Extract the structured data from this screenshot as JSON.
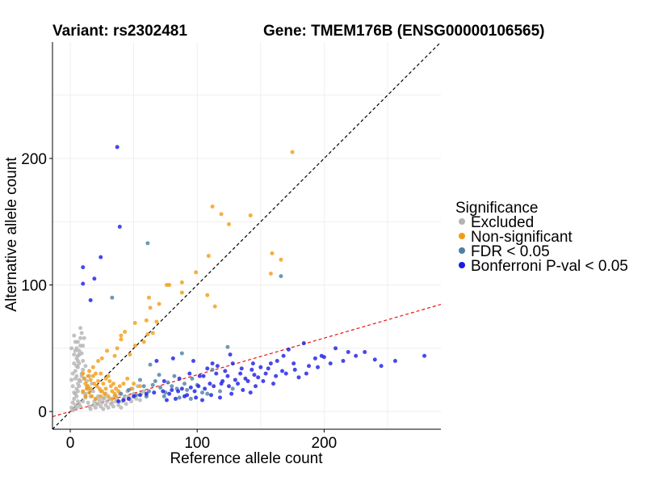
{
  "titles": {
    "variant": "Variant: rs2302481",
    "gene": "Gene: TMEM176B (ENSG00000106565)"
  },
  "chart_data": {
    "type": "scatter",
    "xlabel": "Reference allele count",
    "ylabel": "Alternative allele count",
    "xlim": [
      -14,
      292
    ],
    "ylim": [
      -14,
      292
    ],
    "x_ticks": [
      0,
      100,
      200
    ],
    "y_ticks": [
      0,
      100,
      200
    ],
    "minor_grid": [
      50,
      150,
      250
    ],
    "grid": true,
    "reference_lines": [
      {
        "name": "y = x",
        "slope": 1.0,
        "intercept": 0,
        "color": "#000000",
        "dash": true
      },
      {
        "name": "fitted",
        "slope": 0.29,
        "intercept": 0,
        "color": "#ee1111",
        "dash": true
      }
    ],
    "legend": {
      "title": "Significance",
      "position": "right",
      "entries": [
        {
          "label": "Excluded",
          "color": "#b3b3b3"
        },
        {
          "label": "Non-significant",
          "color": "#f39c12"
        },
        {
          "label": "FDR < 0.05",
          "color": "#4a7fa8"
        },
        {
          "label": "Bonferroni P-val < 0.05",
          "color": "#1a1ae6"
        }
      ]
    },
    "series": [
      {
        "name": "Excluded",
        "color": "#b3b3b3",
        "points": [
          [
            3,
            2
          ],
          [
            4,
            5
          ],
          [
            5,
            3
          ],
          [
            6,
            8
          ],
          [
            7,
            6
          ],
          [
            8,
            4
          ],
          [
            3,
            10
          ],
          [
            4,
            14
          ],
          [
            5,
            18
          ],
          [
            6,
            22
          ],
          [
            7,
            25
          ],
          [
            5,
            28
          ],
          [
            4,
            32
          ],
          [
            6,
            35
          ],
          [
            3,
            38
          ],
          [
            5,
            42
          ],
          [
            7,
            45
          ],
          [
            4,
            48
          ],
          [
            8,
            52
          ],
          [
            6,
            55
          ],
          [
            9,
            62
          ],
          [
            11,
            58
          ],
          [
            8,
            66
          ],
          [
            10,
            40
          ],
          [
            12,
            36
          ],
          [
            9,
            30
          ],
          [
            11,
            26
          ],
          [
            13,
            20
          ],
          [
            10,
            15
          ],
          [
            12,
            11
          ],
          [
            14,
            7
          ],
          [
            15,
            4
          ],
          [
            16,
            2
          ],
          [
            18,
            5
          ],
          [
            20,
            3
          ],
          [
            22,
            6
          ],
          [
            24,
            4
          ],
          [
            26,
            2
          ],
          [
            28,
            5
          ],
          [
            30,
            3
          ],
          [
            32,
            6
          ],
          [
            34,
            4
          ],
          [
            36,
            8
          ],
          [
            38,
            5
          ],
          [
            40,
            3
          ],
          [
            42,
            10
          ],
          [
            44,
            6
          ],
          [
            46,
            12
          ],
          [
            48,
            8
          ],
          [
            50,
            14
          ],
          [
            52,
            10
          ],
          [
            55,
            9
          ],
          [
            58,
            16
          ],
          [
            5,
            12
          ],
          [
            6,
            16
          ],
          [
            7,
            20
          ],
          [
            8,
            24
          ],
          [
            9,
            28
          ],
          [
            10,
            33
          ],
          [
            7,
            38
          ],
          [
            6,
            44
          ],
          [
            5,
            50
          ],
          [
            4,
            55
          ],
          [
            3,
            60
          ],
          [
            2,
            1
          ],
          [
            1,
            3
          ],
          [
            2,
            7
          ],
          [
            3,
            15
          ],
          [
            2,
            20
          ],
          [
            1,
            25
          ],
          [
            2,
            30
          ],
          [
            3,
            45
          ],
          [
            1,
            50
          ],
          [
            10,
            8
          ],
          [
            12,
            14
          ],
          [
            14,
            18
          ],
          [
            13,
            24
          ],
          [
            15,
            28
          ],
          [
            16,
            12
          ],
          [
            18,
            16
          ],
          [
            17,
            22
          ],
          [
            20,
            10
          ],
          [
            22,
            12
          ],
          [
            24,
            16
          ],
          [
            26,
            10
          ],
          [
            28,
            14
          ],
          [
            19,
            8
          ],
          [
            21,
            6
          ],
          [
            23,
            9
          ],
          [
            25,
            7
          ],
          [
            27,
            11
          ],
          [
            29,
            8
          ],
          [
            31,
            10
          ],
          [
            33,
            7
          ],
          [
            35,
            12
          ],
          [
            37,
            9
          ],
          [
            39,
            14
          ],
          [
            41,
            8
          ],
          [
            43,
            12
          ],
          [
            45,
            16
          ],
          [
            47,
            10
          ],
          [
            49,
            18
          ],
          [
            51,
            12
          ],
          [
            53,
            20
          ],
          [
            56,
            14
          ],
          [
            60,
            12
          ],
          [
            4,
            26
          ],
          [
            5,
            36
          ],
          [
            6,
            40
          ],
          [
            7,
            48
          ],
          [
            8,
            58
          ],
          [
            9,
            46
          ],
          [
            10,
            52
          ]
        ]
      },
      {
        "name": "Non-significant",
        "color": "#f39c12",
        "points": [
          [
            175,
            205
          ],
          [
            112,
            162
          ],
          [
            119,
            156
          ],
          [
            125,
            148
          ],
          [
            142,
            155
          ],
          [
            159,
            125
          ],
          [
            109,
            123
          ],
          [
            166,
            120
          ],
          [
            158,
            109
          ],
          [
            99,
            110
          ],
          [
            88,
            102
          ],
          [
            78,
            100
          ],
          [
            76,
            100
          ],
          [
            108,
            92
          ],
          [
            88,
            94
          ],
          [
            114,
            83
          ],
          [
            62,
            90
          ],
          [
            70,
            85
          ],
          [
            63,
            82
          ],
          [
            60,
            72
          ],
          [
            68,
            71
          ],
          [
            65,
            62
          ],
          [
            61,
            61
          ],
          [
            51,
            70
          ],
          [
            43,
            63
          ],
          [
            40,
            60
          ],
          [
            40,
            57
          ],
          [
            58,
            55
          ],
          [
            51,
            52
          ],
          [
            37,
            50
          ],
          [
            47,
            45
          ],
          [
            35,
            44
          ],
          [
            29,
            48
          ],
          [
            25,
            42
          ],
          [
            22,
            40
          ],
          [
            18,
            35
          ],
          [
            15,
            32
          ],
          [
            10,
            30
          ],
          [
            14,
            28
          ],
          [
            16,
            25
          ],
          [
            19,
            22
          ],
          [
            21,
            20
          ],
          [
            23,
            18
          ],
          [
            25,
            16
          ],
          [
            27,
            14
          ],
          [
            30,
            12
          ],
          [
            33,
            10
          ],
          [
            12,
            22
          ],
          [
            13,
            18
          ],
          [
            15,
            15
          ],
          [
            17,
            12
          ],
          [
            20,
            10
          ],
          [
            11,
            26
          ],
          [
            18,
            28
          ],
          [
            24,
            30
          ],
          [
            28,
            26
          ],
          [
            31,
            24
          ],
          [
            34,
            22
          ],
          [
            36,
            18
          ],
          [
            38,
            16
          ],
          [
            14,
            20
          ],
          [
            22,
            24
          ],
          [
            26,
            22
          ],
          [
            32,
            20
          ],
          [
            35,
            14
          ],
          [
            30,
            28
          ],
          [
            20,
            30
          ],
          [
            16,
            18
          ],
          [
            12,
            12
          ],
          [
            10,
            16
          ],
          [
            24,
            12
          ],
          [
            28,
            18
          ],
          [
            33,
            16
          ],
          [
            36,
            12
          ],
          [
            39,
            20
          ],
          [
            42,
            22
          ],
          [
            45,
            26
          ],
          [
            48,
            18
          ],
          [
            50,
            22
          ],
          [
            55,
            20
          ]
        ]
      },
      {
        "name": "FDR < 0.05",
        "color": "#4a7fa8",
        "points": [
          [
            61,
            133
          ],
          [
            166,
            107
          ],
          [
            33,
            90
          ],
          [
            124,
            51
          ],
          [
            88,
            46
          ],
          [
            63,
            37
          ],
          [
            112,
            33
          ],
          [
            70,
            29
          ],
          [
            82,
            28
          ],
          [
            96,
            26
          ],
          [
            55,
            25
          ],
          [
            67,
            24
          ],
          [
            77,
            23
          ],
          [
            90,
            22
          ],
          [
            100,
            21
          ],
          [
            58,
            20
          ],
          [
            71,
            19
          ],
          [
            84,
            18
          ],
          [
            46,
            17
          ],
          [
            62,
            16
          ],
          [
            75,
            15
          ],
          [
            40,
            14
          ],
          [
            52,
            13
          ],
          [
            60,
            12
          ],
          [
            74,
            12
          ],
          [
            86,
            11
          ],
          [
            95,
            10
          ],
          [
            108,
            14
          ],
          [
            118,
            16
          ],
          [
            128,
            18
          ],
          [
            65,
            21
          ],
          [
            80,
            20
          ],
          [
            92,
            17
          ],
          [
            104,
            15
          ]
        ]
      },
      {
        "name": "Bonferroni P-val < 0.05",
        "color": "#1a1ae6",
        "points": [
          [
            37,
            209
          ],
          [
            10,
            114
          ],
          [
            39,
            146
          ],
          [
            24,
            122
          ],
          [
            19,
            105
          ],
          [
            10,
            101
          ],
          [
            16,
            88
          ],
          [
            68,
            40
          ],
          [
            81,
            42
          ],
          [
            97,
            40
          ],
          [
            112,
            38
          ],
          [
            126,
            45
          ],
          [
            128,
            38
          ],
          [
            143,
            33
          ],
          [
            158,
            38
          ],
          [
            163,
            40
          ],
          [
            172,
            49
          ],
          [
            184,
            54
          ],
          [
            200,
            43
          ],
          [
            209,
            50
          ],
          [
            219,
            47
          ],
          [
            232,
            47
          ],
          [
            240,
            41
          ],
          [
            256,
            40
          ],
          [
            279,
            44
          ],
          [
            193,
            42
          ],
          [
            188,
            36
          ],
          [
            177,
            33
          ],
          [
            167,
            32
          ],
          [
            154,
            30
          ],
          [
            148,
            27
          ],
          [
            138,
            26
          ],
          [
            130,
            25
          ],
          [
            120,
            24
          ],
          [
            110,
            22
          ],
          [
            101,
            20
          ],
          [
            95,
            19
          ],
          [
            88,
            18
          ],
          [
            80,
            17
          ],
          [
            73,
            16
          ],
          [
            66,
            15
          ],
          [
            60,
            14
          ],
          [
            55,
            13
          ],
          [
            50,
            12
          ],
          [
            46,
            10
          ],
          [
            42,
            9
          ],
          [
            38,
            8
          ],
          [
            105,
            28
          ],
          [
            115,
            30
          ],
          [
            122,
            32
          ],
          [
            135,
            34
          ],
          [
            145,
            29
          ],
          [
            150,
            35
          ],
          [
            162,
            28
          ],
          [
            170,
            30
          ],
          [
            180,
            27
          ],
          [
            195,
            35
          ],
          [
            205,
            38
          ],
          [
            215,
            40
          ],
          [
            225,
            44
          ],
          [
            245,
            36
          ],
          [
            78,
            14
          ],
          [
            85,
            16
          ],
          [
            92,
            13
          ],
          [
            98,
            16
          ],
          [
            106,
            18
          ],
          [
            113,
            20
          ],
          [
            119,
            22
          ],
          [
            125,
            20
          ],
          [
            132,
            22
          ],
          [
            140,
            24
          ],
          [
            146,
            20
          ],
          [
            152,
            24
          ],
          [
            160,
            22
          ],
          [
            74,
            24
          ],
          [
            86,
            26
          ],
          [
            94,
            30
          ],
          [
            102,
            28
          ],
          [
            108,
            34
          ],
          [
            116,
            36
          ],
          [
            124,
            28
          ],
          [
            134,
            30
          ],
          [
            144,
            38
          ],
          [
            156,
            34
          ],
          [
            168,
            44
          ],
          [
            176,
            38
          ],
          [
            186,
            30
          ],
          [
            198,
            44
          ],
          [
            76,
            9
          ],
          [
            83,
            10
          ],
          [
            90,
            12
          ],
          [
            99,
            11
          ],
          [
            104,
            9
          ],
          [
            111,
            13
          ],
          [
            118,
            11
          ],
          [
            127,
            14
          ],
          [
            136,
            17
          ],
          [
            142,
            15
          ]
        ]
      }
    ]
  }
}
